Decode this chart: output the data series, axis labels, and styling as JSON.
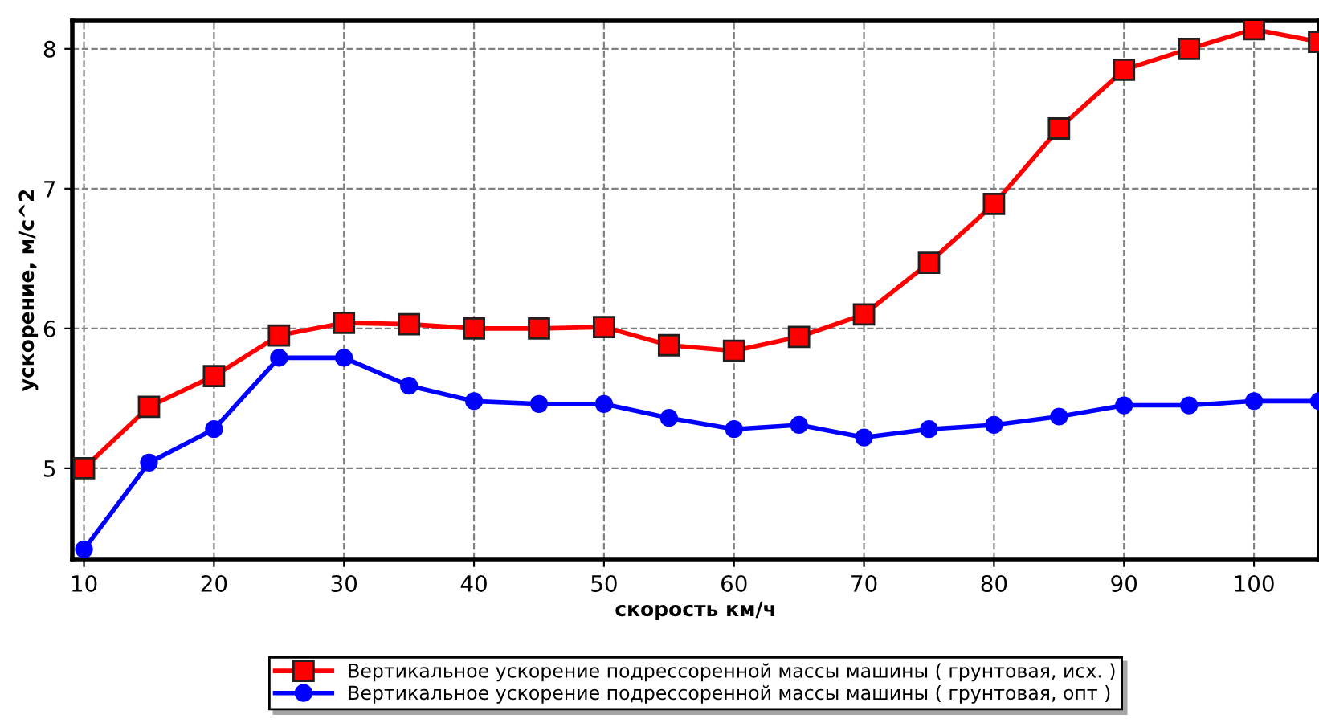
{
  "chart_data": {
    "type": "line",
    "xlabel": "скорость км/ч",
    "ylabel": "ускорение, м/с^2",
    "x": [
      10,
      15,
      20,
      25,
      30,
      35,
      40,
      45,
      50,
      55,
      60,
      65,
      70,
      75,
      80,
      85,
      90,
      95,
      100,
      105
    ],
    "series": [
      {
        "name": "Вертикальное ускорение подрессоренной массы машины ( грунтовая, исх. )",
        "color": "#ff0000",
        "marker": "square",
        "values": [
          5.0,
          5.44,
          5.66,
          5.95,
          6.04,
          6.03,
          6.0,
          6.0,
          6.01,
          5.88,
          5.84,
          5.94,
          6.1,
          6.47,
          6.89,
          7.43,
          7.85,
          8.0,
          8.14,
          8.05
        ]
      },
      {
        "name": "Вертикальное ускорение подрессоренной массы машины ( грунтовая, опт )",
        "color": "#0000ff",
        "marker": "circle",
        "values": [
          4.42,
          5.04,
          5.28,
          5.79,
          5.79,
          5.59,
          5.48,
          5.46,
          5.46,
          5.36,
          5.28,
          5.31,
          5.22,
          5.28,
          5.31,
          5.37,
          5.45,
          5.45,
          5.48,
          5.48
        ]
      }
    ],
    "xlim": [
      9.1,
      105
    ],
    "ylim": [
      4.35,
      8.2
    ],
    "xticks": [
      10,
      20,
      30,
      40,
      50,
      60,
      70,
      80,
      90,
      100
    ],
    "yticks": [
      5,
      6,
      7,
      8
    ],
    "grid": true,
    "legend": "bottom",
    "line_style": "solid"
  }
}
